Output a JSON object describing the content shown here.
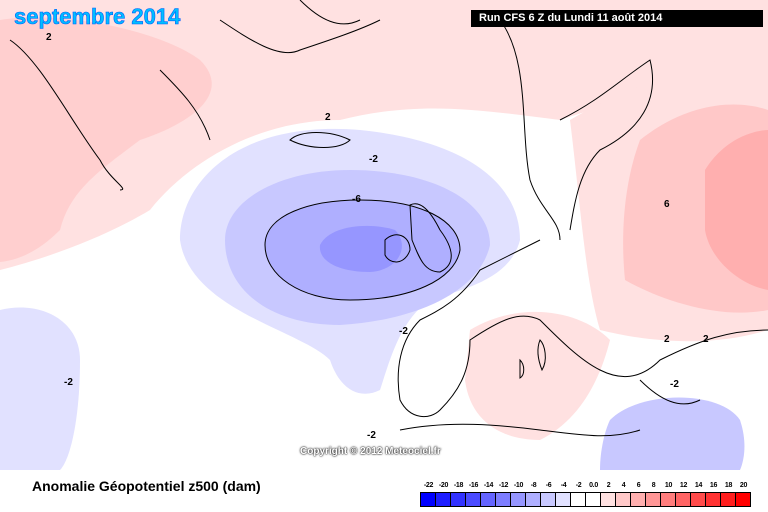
{
  "map": {
    "title": "septembre 2014",
    "run_info": "Run CFS 6 Z du Lundi 11 août 2014",
    "copyright": "Copyright © 2012 Meteociel.fr",
    "contour_labels": [
      "2",
      "2",
      "-2",
      "-6",
      "-2",
      "6",
      "2",
      "2",
      "-2",
      "-2",
      "-2"
    ]
  },
  "legend": {
    "title": "Anomalie Géopotentiel z500 (dam)",
    "labels": [
      "-22",
      "-20",
      "-18",
      "-16",
      "-14",
      "-12",
      "-10",
      "-8",
      "-6",
      "-4",
      "-2",
      "0.0",
      "2",
      "4",
      "6",
      "8",
      "10",
      "12",
      "14",
      "16",
      "18",
      "20"
    ],
    "colors": [
      "#0000ff",
      "#1e1eff",
      "#3232ff",
      "#4b4bff",
      "#6464ff",
      "#7d7dff",
      "#9696ff",
      "#afafff",
      "#c8c8ff",
      "#e1e1ff",
      "#ffffff",
      "#ffffff",
      "#ffe1e1",
      "#ffc8c8",
      "#ffafaf",
      "#ff9696",
      "#ff7d7d",
      "#ff6464",
      "#ff4b4b",
      "#ff3232",
      "#ff1e1e",
      "#ff0000"
    ]
  }
}
